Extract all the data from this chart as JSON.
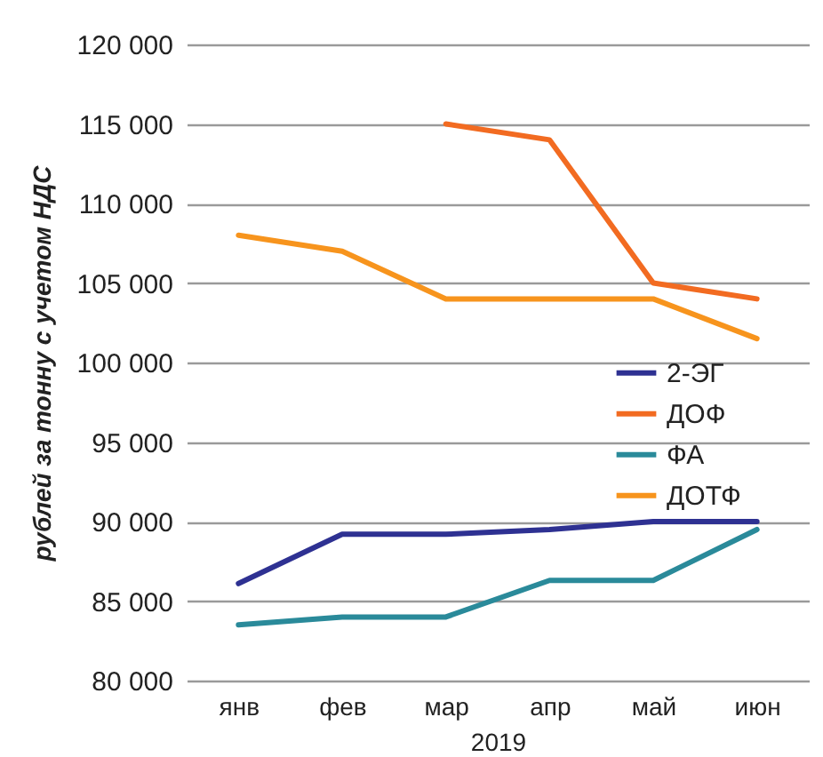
{
  "chart_data": {
    "type": "line",
    "ylabel": "рублей за тонну с учетом  НДС",
    "xlabel": "2019",
    "categories": [
      "янв",
      "фев",
      "мар",
      "апр",
      "май",
      "июн"
    ],
    "series": [
      {
        "name": "2-ЭГ",
        "color": "#2e3192",
        "values": [
          86100,
          89200,
          89200,
          89500,
          90000,
          90000
        ]
      },
      {
        "name": "ДОФ",
        "color": "#f26b21",
        "values": [
          null,
          null,
          115000,
          114000,
          105000,
          104000
        ]
      },
      {
        "name": "ФА",
        "color": "#2a8a9a",
        "values": [
          83500,
          84000,
          84000,
          86300,
          86300,
          89500
        ]
      },
      {
        "name": "ДОТФ",
        "color": "#f7941d",
        "values": [
          108000,
          107000,
          104000,
          104000,
          104000,
          101500
        ]
      }
    ],
    "ylim": [
      80000,
      120000
    ],
    "yticks": [
      {
        "value": 80000,
        "label": "80 000"
      },
      {
        "value": 85000,
        "label": "85 000"
      },
      {
        "value": 90000,
        "label": "90 000"
      },
      {
        "value": 95000,
        "label": "95 000"
      },
      {
        "value": 100000,
        "label": "100 000"
      },
      {
        "value": 105000,
        "label": "105 000"
      },
      {
        "value": 110000,
        "label": "110 000"
      },
      {
        "value": 115000,
        "label": "115 000"
      },
      {
        "value": 120000,
        "label": "120 000"
      }
    ],
    "grid": "y",
    "legend": "right"
  }
}
